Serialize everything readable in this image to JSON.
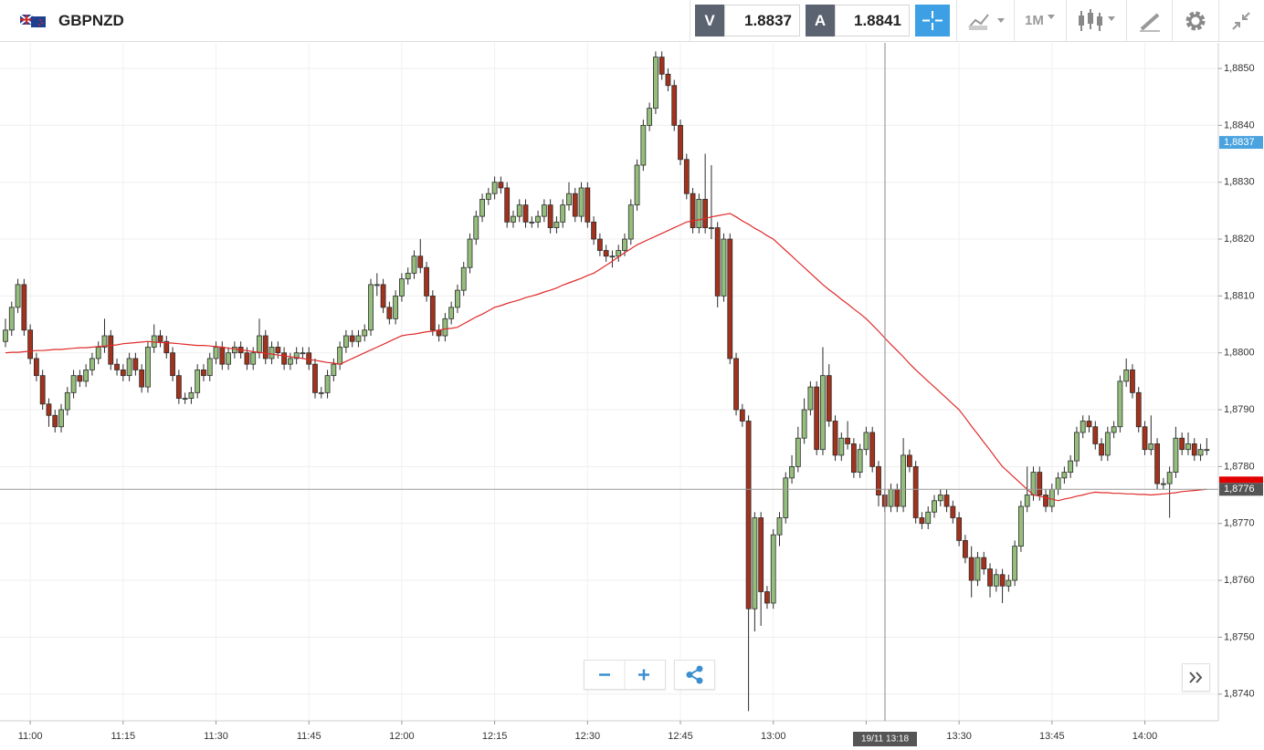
{
  "toolbar": {
    "symbol": "GBPNZD",
    "bid_label": "V",
    "bid": "1.8837",
    "ask_label": "A",
    "ask": "1.8841",
    "timeframe": "1M"
  },
  "chart_data": {
    "type": "candlestick",
    "categories": [
      null,
      null,
      null,
      null,
      "11:00",
      null,
      null,
      null,
      null,
      null,
      null,
      null,
      null,
      null,
      null,
      null,
      null,
      null,
      null,
      "11:15",
      null,
      null,
      null,
      null,
      null,
      null,
      null,
      null,
      null,
      null,
      null,
      null,
      null,
      null,
      "11:30",
      null,
      null,
      null,
      null,
      null,
      null,
      null,
      null,
      null,
      null,
      null,
      null,
      null,
      null,
      "11:45",
      null,
      null,
      null,
      null,
      null,
      null,
      null,
      null,
      null,
      null,
      null,
      null,
      null,
      null,
      "12:00",
      null,
      null,
      null,
      null,
      null,
      null,
      null,
      null,
      null,
      null,
      null,
      null,
      null,
      null,
      "12:15",
      null,
      null,
      null,
      null,
      null,
      null,
      null,
      null,
      null,
      null,
      null,
      null,
      null,
      null,
      "12:30",
      null,
      null,
      null,
      null,
      null,
      null,
      null,
      null,
      null,
      null,
      null,
      null,
      null,
      null,
      "12:45",
      null,
      null,
      null,
      null,
      null,
      null,
      null,
      null,
      null,
      null,
      null,
      null,
      null,
      null,
      "13:00",
      null,
      null,
      null,
      null,
      null,
      null,
      null,
      null,
      null,
      null,
      null,
      null,
      null,
      null,
      "13:15",
      null,
      null,
      null,
      null,
      null,
      null,
      null,
      null,
      null,
      null,
      null,
      null,
      null,
      null,
      "13:30",
      null,
      null,
      null,
      null,
      null,
      null,
      null,
      null,
      null,
      null,
      null,
      null,
      null,
      null,
      "13:45",
      null,
      null,
      null,
      null,
      null,
      null,
      null,
      null,
      null,
      null,
      null,
      null,
      null,
      null,
      "14:00",
      null,
      null,
      null,
      null,
      null,
      null,
      null,
      null,
      null,
      null
    ],
    "open": [
      1.8802,
      1.8804,
      1.8808,
      1.8812,
      1.8804,
      1.8799,
      1.8796,
      1.8791,
      1.8789,
      1.8787,
      1.879,
      1.8793,
      1.8796,
      1.8795,
      1.8797,
      1.8799,
      1.8801,
      1.8803,
      1.8798,
      1.8797,
      1.8796,
      1.8799,
      1.8797,
      1.8794,
      1.8801,
      1.8803,
      1.8802,
      1.88,
      1.8796,
      1.8792,
      1.8792,
      1.8793,
      1.8797,
      1.8796,
      1.8799,
      1.8801,
      1.8798,
      1.88,
      1.8801,
      1.88,
      1.8798,
      1.88,
      1.8803,
      1.8799,
      1.8801,
      1.88,
      1.8798,
      1.8799,
      1.88,
      1.88,
      1.8798,
      1.8793,
      1.8793,
      1.8796,
      1.8798,
      1.8801,
      1.8803,
      1.8802,
      1.8803,
      1.8804,
      1.8812,
      1.8812,
      1.8808,
      1.8806,
      1.881,
      1.8813,
      1.8814,
      1.8817,
      1.8815,
      1.881,
      1.8804,
      1.8803,
      1.8806,
      1.8808,
      1.8811,
      1.8815,
      1.882,
      1.8824,
      1.8827,
      1.8828,
      1.883,
      1.8829,
      1.8823,
      1.8824,
      1.8826,
      1.8823,
      1.8823,
      1.8824,
      1.8826,
      1.8822,
      1.8823,
      1.8826,
      1.8828,
      1.8824,
      1.8829,
      1.8823,
      1.882,
      1.8818,
      1.8817,
      1.8817,
      1.8818,
      1.882,
      1.8826,
      1.8833,
      1.884,
      1.8843,
      1.8852,
      1.8849,
      1.8847,
      1.884,
      1.8834,
      1.8828,
      1.8822,
      1.8827,
      1.8822,
      1.8822,
      1.881,
      1.882,
      1.8799,
      1.879,
      1.8788,
      1.8755,
      1.8771,
      1.8758,
      1.8756,
      1.8768,
      1.8771,
      1.8778,
      1.878,
      1.8785,
      1.879,
      1.8794,
      1.8783,
      1.8796,
      1.8788,
      1.8782,
      1.8785,
      1.8784,
      1.8779,
      1.8783,
      1.8786,
      1.878,
      1.8775,
      1.8773,
      1.8776,
      1.8773,
      1.8782,
      1.878,
      1.8771,
      1.877,
      1.8772,
      1.8774,
      1.8775,
      1.8773,
      1.8771,
      1.8767,
      1.8764,
      1.876,
      1.8764,
      1.8762,
      1.8759,
      1.8761,
      1.8759,
      1.876,
      1.8766,
      1.8773,
      1.8775,
      1.8779,
      1.8775,
      1.8773,
      1.8776,
      1.8778,
      1.8779,
      1.8781,
      1.8786,
      1.8788,
      1.8787,
      1.8784,
      1.8782,
      1.8786,
      1.8787,
      1.8795,
      1.8797,
      1.8793,
      1.8787,
      1.8783,
      1.8784,
      1.8777,
      1.8777,
      1.8779,
      1.8785,
      1.8783,
      1.8784,
      1.8782,
      1.8783
    ],
    "high": [
      1.8806,
      1.8809,
      1.8813,
      1.8813,
      1.8805,
      1.88,
      1.8797,
      1.8792,
      1.879,
      1.8791,
      1.8794,
      1.8797,
      1.8797,
      1.8798,
      1.88,
      1.8802,
      1.8806,
      1.8804,
      1.8799,
      1.8798,
      1.88,
      1.88,
      1.8798,
      1.8802,
      1.8805,
      1.8804,
      1.8803,
      1.8801,
      1.8797,
      1.8793,
      1.8794,
      1.8798,
      1.8798,
      1.88,
      1.8802,
      1.8802,
      1.8801,
      1.8802,
      1.8802,
      1.8801,
      1.8801,
      1.8806,
      1.8804,
      1.8802,
      1.8802,
      1.8801,
      1.88,
      1.8801,
      1.8801,
      1.8801,
      1.8799,
      1.8794,
      1.8797,
      1.8799,
      1.8802,
      1.8804,
      1.8804,
      1.8804,
      1.8805,
      1.8813,
      1.8814,
      1.8813,
      1.8809,
      1.8811,
      1.8814,
      1.8815,
      1.8818,
      1.882,
      1.8816,
      1.8811,
      1.8805,
      1.8807,
      1.8809,
      1.8812,
      1.8816,
      1.8821,
      1.8825,
      1.8828,
      1.8829,
      1.8831,
      1.8831,
      1.883,
      1.8825,
      1.8827,
      1.8827,
      1.8824,
      1.8825,
      1.8827,
      1.8827,
      1.8824,
      1.8827,
      1.883,
      1.8829,
      1.883,
      1.883,
      1.8824,
      1.8821,
      1.8819,
      1.8818,
      1.8819,
      1.8821,
      1.8827,
      1.8834,
      1.8841,
      1.8844,
      1.8853,
      1.8853,
      1.885,
      1.8848,
      1.8841,
      1.8835,
      1.8829,
      1.8828,
      1.8835,
      1.8833,
      1.8823,
      1.8821,
      1.8821,
      1.88,
      1.8791,
      1.8789,
      1.8772,
      1.8772,
      1.8759,
      1.8769,
      1.8772,
      1.8779,
      1.8782,
      1.8787,
      1.8792,
      1.8795,
      1.8795,
      1.8801,
      1.8798,
      1.8789,
      1.8786,
      1.8788,
      1.8785,
      1.8784,
      1.8787,
      1.8787,
      1.8781,
      1.8776,
      1.8777,
      1.8777,
      1.8785,
      1.8783,
      1.8781,
      1.8772,
      1.8773,
      1.8775,
      1.8776,
      1.8776,
      1.8774,
      1.8772,
      1.8768,
      1.8766,
      1.8765,
      1.8765,
      1.8763,
      1.8762,
      1.8762,
      1.8761,
      1.8767,
      1.8774,
      1.878,
      1.878,
      1.878,
      1.8776,
      1.8777,
      1.8779,
      1.878,
      1.8782,
      1.8787,
      1.8789,
      1.8789,
      1.8788,
      1.8785,
      1.8787,
      1.8788,
      1.8796,
      1.8799,
      1.8798,
      1.8794,
      1.8788,
      1.8789,
      1.8785,
      1.8778,
      1.878,
      1.8787,
      1.8786,
      1.8786,
      1.8785,
      1.8784,
      1.8785
    ],
    "low": [
      1.8801,
      1.8803,
      1.8807,
      1.8803,
      1.8798,
      1.8795,
      1.879,
      1.8787,
      1.8786,
      1.8786,
      1.8789,
      1.8792,
      1.8794,
      1.8794,
      1.8796,
      1.8798,
      1.88,
      1.8797,
      1.8796,
      1.8795,
      1.8795,
      1.8796,
      1.8793,
      1.8793,
      1.88,
      1.8801,
      1.8799,
      1.8795,
      1.8791,
      1.8791,
      1.8791,
      1.8792,
      1.8795,
      1.8795,
      1.8798,
      1.8797,
      1.8797,
      1.8799,
      1.8799,
      1.8797,
      1.8797,
      1.8799,
      1.8798,
      1.8798,
      1.8799,
      1.8797,
      1.8797,
      1.8798,
      1.8799,
      1.8797,
      1.8792,
      1.8792,
      1.8792,
      1.8795,
      1.8797,
      1.88,
      1.8801,
      1.8801,
      1.8802,
      1.8803,
      1.881,
      1.8807,
      1.8805,
      1.8805,
      1.8809,
      1.8812,
      1.8813,
      1.8814,
      1.8809,
      1.8803,
      1.8802,
      1.8802,
      1.8805,
      1.8807,
      1.881,
      1.8814,
      1.8819,
      1.8823,
      1.8826,
      1.8827,
      1.8828,
      1.8822,
      1.8822,
      1.8823,
      1.8822,
      1.8822,
      1.8822,
      1.8823,
      1.8821,
      1.8821,
      1.8822,
      1.8825,
      1.8823,
      1.8823,
      1.8822,
      1.8819,
      1.8817,
      1.8816,
      1.8815,
      1.8816,
      1.8817,
      1.8819,
      1.8825,
      1.8832,
      1.8839,
      1.8842,
      1.8848,
      1.8846,
      1.8839,
      1.8833,
      1.8827,
      1.8821,
      1.8821,
      1.8821,
      1.882,
      1.8808,
      1.8809,
      1.8798,
      1.8789,
      1.8787,
      1.8737,
      1.8751,
      1.8752,
      1.8755,
      1.8755,
      1.8766,
      1.877,
      1.8777,
      1.8779,
      1.8784,
      1.8789,
      1.8782,
      1.8782,
      1.8787,
      1.8781,
      1.8781,
      1.8783,
      1.8778,
      1.8778,
      1.8782,
      1.8779,
      1.8773,
      1.8772,
      1.8772,
      1.8772,
      1.8772,
      1.8779,
      1.877,
      1.8769,
      1.8769,
      1.8771,
      1.8773,
      1.8772,
      1.877,
      1.8766,
      1.8763,
      1.8757,
      1.8759,
      1.8761,
      1.8757,
      1.8758,
      1.8756,
      1.8758,
      1.8759,
      1.8765,
      1.8772,
      1.8774,
      1.8774,
      1.8772,
      1.8772,
      1.8775,
      1.8777,
      1.8778,
      1.878,
      1.8785,
      1.8786,
      1.8783,
      1.8781,
      1.8781,
      1.8785,
      1.8786,
      1.8794,
      1.8792,
      1.8786,
      1.8782,
      1.8782,
      1.8776,
      1.8776,
      1.8771,
      1.8778,
      1.8782,
      1.8782,
      1.8781,
      1.8781,
      1.8782
    ],
    "close": [
      1.8804,
      1.8808,
      1.8812,
      1.8804,
      1.8799,
      1.8796,
      1.8791,
      1.8789,
      1.8787,
      1.879,
      1.8793,
      1.8796,
      1.8795,
      1.8797,
      1.8799,
      1.8801,
      1.8803,
      1.8798,
      1.8797,
      1.8796,
      1.8799,
      1.8797,
      1.8794,
      1.8801,
      1.8803,
      1.8802,
      1.88,
      1.8796,
      1.8792,
      1.8792,
      1.8793,
      1.8797,
      1.8796,
      1.8799,
      1.8801,
      1.8798,
      1.88,
      1.8801,
      1.88,
      1.8798,
      1.88,
      1.8803,
      1.8799,
      1.8801,
      1.88,
      1.8798,
      1.8799,
      1.88,
      1.88,
      1.8798,
      1.8793,
      1.8793,
      1.8796,
      1.8798,
      1.8801,
      1.8803,
      1.8802,
      1.8803,
      1.8804,
      1.8812,
      1.8812,
      1.8808,
      1.8806,
      1.881,
      1.8813,
      1.8814,
      1.8817,
      1.8815,
      1.881,
      1.8804,
      1.8803,
      1.8806,
      1.8808,
      1.8811,
      1.8815,
      1.882,
      1.8824,
      1.8827,
      1.8828,
      1.883,
      1.8829,
      1.8823,
      1.8824,
      1.8826,
      1.8823,
      1.8823,
      1.8824,
      1.8826,
      1.8822,
      1.8823,
      1.8826,
      1.8828,
      1.8824,
      1.8829,
      1.8823,
      1.882,
      1.8818,
      1.8817,
      1.8817,
      1.8818,
      1.882,
      1.8826,
      1.8833,
      1.884,
      1.8843,
      1.8852,
      1.8849,
      1.8847,
      1.884,
      1.8834,
      1.8828,
      1.8822,
      1.8827,
      1.8822,
      1.8822,
      1.881,
      1.882,
      1.8799,
      1.879,
      1.8788,
      1.8755,
      1.8771,
      1.8758,
      1.8756,
      1.8768,
      1.8771,
      1.8778,
      1.878,
      1.8785,
      1.879,
      1.8794,
      1.8783,
      1.8796,
      1.8788,
      1.8782,
      1.8785,
      1.8784,
      1.8779,
      1.8783,
      1.8786,
      1.878,
      1.8775,
      1.8773,
      1.8776,
      1.8773,
      1.8782,
      1.878,
      1.8771,
      1.877,
      1.8772,
      1.8774,
      1.8775,
      1.8773,
      1.8771,
      1.8767,
      1.8764,
      1.876,
      1.8764,
      1.8762,
      1.8759,
      1.8761,
      1.8759,
      1.876,
      1.8766,
      1.8773,
      1.8775,
      1.8779,
      1.8775,
      1.8773,
      1.8776,
      1.8778,
      1.8779,
      1.8781,
      1.8786,
      1.8788,
      1.8787,
      1.8784,
      1.8782,
      1.8786,
      1.8787,
      1.8795,
      1.8797,
      1.8793,
      1.8787,
      1.8783,
      1.8784,
      1.8777,
      1.8777,
      1.8779,
      1.8785,
      1.8783,
      1.8784,
      1.8782,
      1.8783,
      1.8783
    ],
    "up_color": "#95be7c",
    "down_color": "#a3321c",
    "outline_color": "#2b2b2b",
    "ma": {
      "color": "#e02b2b",
      "values": [
        1.88,
        1.88001,
        1.88001,
        1.88002,
        1.88003,
        1.88004,
        1.88004,
        1.88005,
        1.88006,
        1.88006,
        1.88007,
        1.88008,
        1.88009,
        1.88009,
        1.8801,
        1.88011,
        1.88012,
        1.88013,
        1.88014,
        1.88016,
        1.88017,
        1.88018,
        1.88019,
        1.8802,
        1.88019,
        1.88018,
        1.88018,
        1.88017,
        1.88016,
        1.88015,
        1.88014,
        1.88013,
        1.88013,
        1.88012,
        1.88011,
        1.8801,
        1.88008,
        1.88007,
        1.88005,
        1.88004,
        1.88002,
        1.88001,
        1.87999,
        1.87998,
        1.87996,
        1.87995,
        1.87993,
        1.87992,
        1.8799,
        1.87988,
        1.87987,
        1.87985,
        1.87983,
        1.87982,
        1.8798,
        1.87985,
        1.8799,
        1.87995,
        1.88,
        1.88005,
        1.8801,
        1.88015,
        1.8802,
        1.88025,
        1.8803,
        1.88032,
        1.88033,
        1.88035,
        1.88037,
        1.88038,
        1.8804,
        1.88042,
        1.88043,
        1.88045,
        1.88051,
        1.88057,
        1.88063,
        1.88068,
        1.88074,
        1.8808,
        1.88083,
        1.88087,
        1.8809,
        1.88093,
        1.88097,
        1.881,
        1.88103,
        1.88107,
        1.8811,
        1.88114,
        1.88119,
        1.88123,
        1.88127,
        1.88131,
        1.88136,
        1.8814,
        1.88147,
        1.88154,
        1.88161,
        1.88169,
        1.88176,
        1.88183,
        1.8819,
        1.88195,
        1.882,
        1.88205,
        1.8821,
        1.88215,
        1.8822,
        1.88225,
        1.8823,
        1.88232,
        1.88234,
        1.88236,
        1.88239,
        1.88241,
        1.88243,
        1.88245,
        1.88239,
        1.88232,
        1.88226,
        1.88219,
        1.88213,
        1.88206,
        1.882,
        1.8819,
        1.8818,
        1.8817,
        1.8816,
        1.8815,
        1.8814,
        1.8813,
        1.8812,
        1.88111,
        1.88103,
        1.88094,
        1.88086,
        1.88077,
        1.88069,
        1.8806,
        1.88049,
        1.88038,
        1.88026,
        1.88015,
        1.88004,
        1.87993,
        1.87981,
        1.8797,
        1.8796,
        1.8795,
        1.8794,
        1.8793,
        1.8792,
        1.8791,
        1.879,
        1.87886,
        1.87871,
        1.87857,
        1.87843,
        1.87829,
        1.87814,
        1.878,
        1.8779,
        1.8778,
        1.8777,
        1.8776,
        1.8775,
        1.87748,
        1.87745,
        1.87743,
        1.8774,
        1.87743,
        1.87745,
        1.87748,
        1.8775,
        1.87753,
        1.87755,
        1.87754,
        1.87754,
        1.87753,
        1.87753,
        1.87752,
        1.87752,
        1.87751,
        1.87751,
        1.8775,
        1.87751,
        1.87752,
        1.87753,
        1.87754,
        1.87756,
        1.87757,
        1.87758,
        1.87759,
        1.8776
      ]
    },
    "ylim": [
      1.87353,
      1.88545
    ],
    "yticks": [
      {
        "value": 1.874,
        "label": "1,8740"
      },
      {
        "value": 1.875,
        "label": "1,8750"
      },
      {
        "value": 1.876,
        "label": "1,8760"
      },
      {
        "value": 1.877,
        "label": "1,8770"
      },
      {
        "value": 1.878,
        "label": "1,8780"
      },
      {
        "value": 1.879,
        "label": "1,8790"
      },
      {
        "value": 1.88,
        "label": "1,8800"
      },
      {
        "value": 1.881,
        "label": "1,8810"
      },
      {
        "value": 1.882,
        "label": "1,8820"
      },
      {
        "value": 1.883,
        "label": "1,8830"
      },
      {
        "value": 1.884,
        "label": "1,8840"
      },
      {
        "value": 1.885,
        "label": "1,8850"
      }
    ],
    "grid": true,
    "bid_marker": {
      "value": 1.8837,
      "label": "1,8837",
      "color": "#4aa3df"
    },
    "last_price": {
      "value": 1.8776,
      "label": "1,8776",
      "color": "#555555"
    },
    "crosshair_label": "19/11 13:18"
  }
}
